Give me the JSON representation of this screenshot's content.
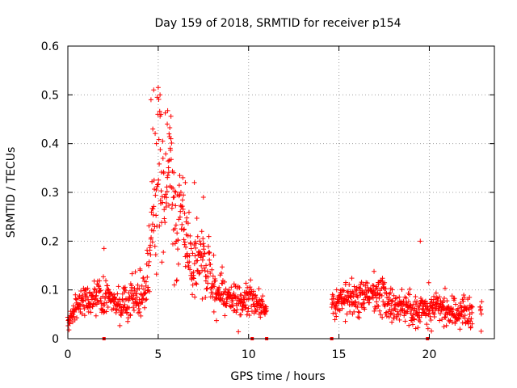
{
  "chart_data": {
    "type": "scatter",
    "title": "Day 159 of 2018, SRMTID for receiver p154",
    "xlabel": "GPS time / hours",
    "ylabel": "SRMTID / TECUs",
    "xlim": [
      0,
      23.6
    ],
    "ylim": [
      0,
      0.6
    ],
    "grid": true,
    "marker": "plus",
    "xticks": [
      {
        "value": 0,
        "label": "0"
      },
      {
        "value": 5,
        "label": "5"
      },
      {
        "value": 10,
        "label": "10"
      },
      {
        "value": 15,
        "label": "15"
      },
      {
        "value": 20,
        "label": "20"
      }
    ],
    "yticks": [
      {
        "value": 0,
        "label": "0"
      },
      {
        "value": 0.1,
        "label": "0.1"
      },
      {
        "value": 0.2,
        "label": "0.2"
      },
      {
        "value": 0.3,
        "label": "0.3"
      },
      {
        "value": 0.4,
        "label": "0.4"
      },
      {
        "value": 0.5,
        "label": "0.5"
      },
      {
        "value": 0.6,
        "label": "0.6"
      }
    ],
    "series": [
      {
        "name": "SRMTID",
        "color": "#ff0000",
        "segments": [
          [
            0.0,
            11.0
          ],
          [
            14.6,
            22.9
          ]
        ],
        "x": [
          0.0,
          0.1,
          0.2,
          0.3,
          0.4,
          0.5,
          0.6,
          0.7,
          0.8,
          0.9,
          1.0,
          1.1,
          1.2,
          1.3,
          1.4,
          1.5,
          1.6,
          1.7,
          1.8,
          1.9,
          2.0,
          2.1,
          2.2,
          2.3,
          2.4,
          2.5,
          2.6,
          2.7,
          2.8,
          2.9,
          3.0,
          3.1,
          3.2,
          3.3,
          3.4,
          3.5,
          3.6,
          3.7,
          3.8,
          3.9,
          4.0,
          4.1,
          4.2,
          4.3,
          4.4,
          4.5,
          4.6,
          4.7,
          4.8,
          4.9,
          5.0,
          5.1,
          5.2,
          5.3,
          5.4,
          5.5,
          5.6,
          5.7,
          5.8,
          5.9,
          6.0,
          6.1,
          6.2,
          6.3,
          6.4,
          6.5,
          6.6,
          6.7,
          6.8,
          6.9,
          7.0,
          7.1,
          7.2,
          7.3,
          7.4,
          7.5,
          7.6,
          7.7,
          7.8,
          7.9,
          8.0,
          8.2,
          8.4,
          8.6,
          8.8,
          9.0,
          9.2,
          9.4,
          9.6,
          9.8,
          10.0,
          10.2,
          10.4,
          10.6,
          10.8,
          11.0,
          14.6,
          14.8,
          15.0,
          15.2,
          15.4,
          15.6,
          15.8,
          16.0,
          16.2,
          16.4,
          16.6,
          16.8,
          17.0,
          17.2,
          17.4,
          17.6,
          17.8,
          18.0,
          18.2,
          18.4,
          18.6,
          18.8,
          19.0,
          19.2,
          19.4,
          19.6,
          19.8,
          20.0,
          20.2,
          20.4,
          20.6,
          20.8,
          21.0,
          21.2,
          21.4,
          21.6,
          21.8,
          22.0,
          22.2,
          22.4,
          22.6,
          22.8
        ],
        "y": [
          0.025,
          0.04,
          0.05,
          0.06,
          0.065,
          0.07,
          0.07,
          0.075,
          0.08,
          0.085,
          0.08,
          0.075,
          0.07,
          0.075,
          0.08,
          0.085,
          0.09,
          0.1,
          0.085,
          0.075,
          0.07,
          0.075,
          0.08,
          0.085,
          0.09,
          0.085,
          0.08,
          0.075,
          0.07,
          0.075,
          0.08,
          0.075,
          0.07,
          0.065,
          0.07,
          0.075,
          0.08,
          0.09,
          0.085,
          0.08,
          0.085,
          0.09,
          0.095,
          0.1,
          0.12,
          0.15,
          0.18,
          0.22,
          0.26,
          0.3,
          0.35,
          0.37,
          0.33,
          0.3,
          0.28,
          0.3,
          0.34,
          0.36,
          0.3,
          0.25,
          0.22,
          0.2,
          0.24,
          0.26,
          0.23,
          0.2,
          0.19,
          0.17,
          0.16,
          0.15,
          0.15,
          0.16,
          0.17,
          0.18,
          0.16,
          0.15,
          0.14,
          0.13,
          0.14,
          0.12,
          0.11,
          0.1,
          0.095,
          0.09,
          0.085,
          0.08,
          0.085,
          0.08,
          0.075,
          0.08,
          0.085,
          0.08,
          0.075,
          0.07,
          0.065,
          0.06,
          0.06,
          0.065,
          0.07,
          0.075,
          0.08,
          0.085,
          0.08,
          0.075,
          0.08,
          0.085,
          0.09,
          0.095,
          0.09,
          0.085,
          0.08,
          0.075,
          0.07,
          0.065,
          0.06,
          0.065,
          0.07,
          0.065,
          0.06,
          0.055,
          0.06,
          0.07,
          0.065,
          0.06,
          0.065,
          0.07,
          0.065,
          0.06,
          0.055,
          0.06,
          0.055,
          0.05,
          0.055,
          0.06,
          0.055,
          0.05,
          0.055,
          0.06
        ],
        "spread": [
          0.01,
          0.015,
          0.015,
          0.02,
          0.02,
          0.02,
          0.02,
          0.025,
          0.025,
          0.025,
          0.025,
          0.025,
          0.025,
          0.025,
          0.03,
          0.03,
          0.03,
          0.03,
          0.03,
          0.03,
          0.03,
          0.03,
          0.03,
          0.03,
          0.03,
          0.03,
          0.03,
          0.03,
          0.03,
          0.03,
          0.03,
          0.03,
          0.03,
          0.03,
          0.03,
          0.03,
          0.03,
          0.03,
          0.03,
          0.03,
          0.035,
          0.035,
          0.035,
          0.04,
          0.045,
          0.06,
          0.08,
          0.1,
          0.12,
          0.14,
          0.15,
          0.14,
          0.13,
          0.12,
          0.12,
          0.12,
          0.12,
          0.12,
          0.11,
          0.1,
          0.09,
          0.08,
          0.09,
          0.09,
          0.08,
          0.07,
          0.06,
          0.06,
          0.06,
          0.06,
          0.06,
          0.06,
          0.06,
          0.06,
          0.05,
          0.05,
          0.05,
          0.045,
          0.045,
          0.04,
          0.04,
          0.035,
          0.035,
          0.035,
          0.03,
          0.03,
          0.03,
          0.03,
          0.03,
          0.03,
          0.03,
          0.03,
          0.025,
          0.025,
          0.02,
          0.02,
          0.02,
          0.025,
          0.03,
          0.03,
          0.03,
          0.03,
          0.03,
          0.03,
          0.03,
          0.03,
          0.035,
          0.035,
          0.035,
          0.035,
          0.03,
          0.03,
          0.03,
          0.03,
          0.025,
          0.025,
          0.025,
          0.025,
          0.025,
          0.03,
          0.03,
          0.025,
          0.025,
          0.03,
          0.03,
          0.025,
          0.025,
          0.025,
          0.025,
          0.025,
          0.025,
          0.025,
          0.025,
          0.025,
          0.025,
          0.025
        ]
      }
    ],
    "outliers": [
      {
        "x": 4.6,
        "y": 0.49
      },
      {
        "x": 4.75,
        "y": 0.51
      },
      {
        "x": 5.0,
        "y": 0.515
      },
      {
        "x": 5.1,
        "y": 0.5
      },
      {
        "x": 5.15,
        "y": 0.46
      },
      {
        "x": 4.7,
        "y": 0.43
      },
      {
        "x": 5.5,
        "y": 0.44
      },
      {
        "x": 5.6,
        "y": 0.42
      },
      {
        "x": 5.7,
        "y": 0.41
      },
      {
        "x": 4.9,
        "y": 0.4
      },
      {
        "x": 2.0,
        "y": 0.185
      },
      {
        "x": 19.5,
        "y": 0.2
      },
      {
        "x": 7.5,
        "y": 0.29
      },
      {
        "x": 7.0,
        "y": 0.32
      },
      {
        "x": 6.5,
        "y": 0.32
      }
    ],
    "baseline_markers": [
      2.0,
      10.2,
      11.0,
      14.6,
      19.9
    ]
  }
}
